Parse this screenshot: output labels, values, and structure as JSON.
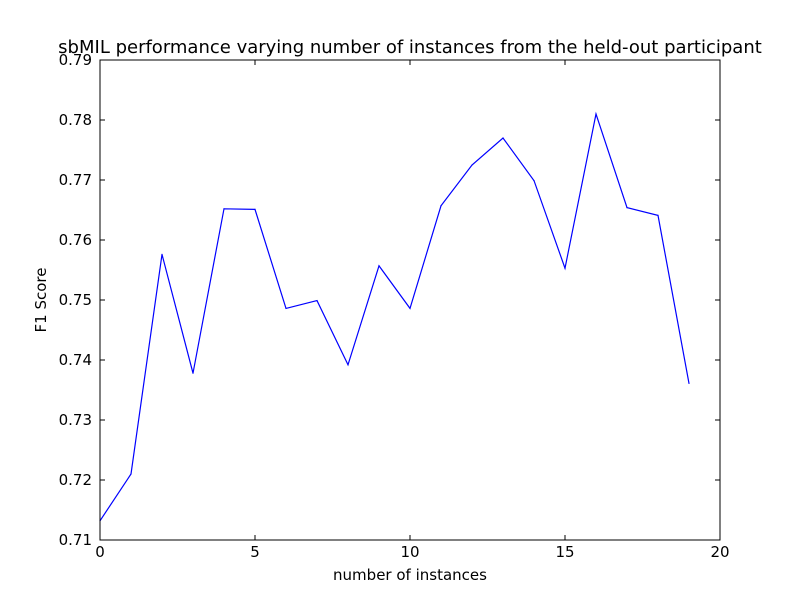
{
  "chart_data": {
    "type": "line",
    "title": "sbMIL performance varying number of instances from the held-out participant",
    "xlabel": "number of instances",
    "ylabel": "F1 Score",
    "xlim": [
      0,
      20
    ],
    "ylim": [
      0.71,
      0.79
    ],
    "xticks": [
      0,
      5,
      10,
      15,
      20
    ],
    "yticks": [
      0.71,
      0.72,
      0.73,
      0.74,
      0.75,
      0.76,
      0.77,
      0.78,
      0.79
    ],
    "xtick_labels": [
      "0",
      "5",
      "10",
      "15",
      "20"
    ],
    "ytick_labels": [
      "0.71",
      "0.72",
      "0.73",
      "0.74",
      "0.75",
      "0.76",
      "0.77",
      "0.78",
      "0.79"
    ],
    "grid": false,
    "legend": false,
    "series": [
      {
        "color": "#0000ff",
        "x": [
          0,
          1,
          2,
          3,
          4,
          5,
          6,
          7,
          8,
          9,
          10,
          11,
          12,
          13,
          14,
          15,
          16,
          17,
          18,
          19
        ],
        "y": [
          0.7132,
          0.721,
          0.7576,
          0.7378,
          0.7652,
          0.7651,
          0.7486,
          0.7499,
          0.7392,
          0.7557,
          0.7486,
          0.7657,
          0.7725,
          0.777,
          0.7699,
          0.7553,
          0.781,
          0.7654,
          0.7641,
          0.7361
        ]
      }
    ]
  }
}
